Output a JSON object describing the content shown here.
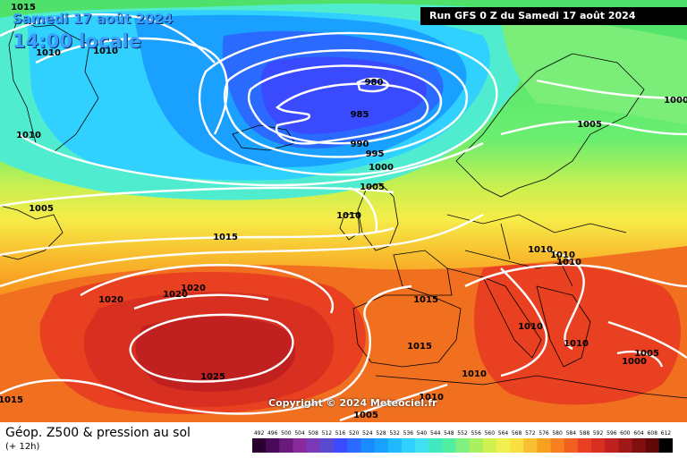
{
  "header": {
    "date_label": "Samedi 17 août 2024",
    "time_label": "14:00 locale",
    "run_label": "Run GFS 0 Z du Samedi 17 août 2024"
  },
  "footer": {
    "title": "Géop. Z500 & pression au sol",
    "subtitle": "(+ 12h)",
    "copyright": "Copyright © 2024 Meteociel.fr"
  },
  "isobar_labels": [
    "1015",
    "1010",
    "1010",
    "1010",
    "980",
    "985",
    "990",
    "995",
    "1000",
    "1005",
    "1005",
    "1010",
    "1015",
    "1010",
    "1010",
    "1010",
    "1005",
    "1000",
    "1005",
    "1000",
    "1020",
    "1020",
    "1020",
    "1025",
    "1015",
    "1010",
    "1015",
    "1015",
    "1010",
    "1010",
    "1010",
    "1005"
  ],
  "colors": {
    "isobar": "#ffffff",
    "coast": "#000000"
  },
  "scale": {
    "labels": [
      "492",
      "496",
      "500",
      "504",
      "508",
      "512",
      "516",
      "520",
      "524",
      "528",
      "532",
      "536",
      "540",
      "544",
      "548",
      "552",
      "556",
      "560",
      "564",
      "568",
      "572",
      "576",
      "580",
      "584",
      "588",
      "592",
      "596",
      "600",
      "604",
      "608",
      "612"
    ],
    "colors": [
      "#2a0030",
      "#4a0a5a",
      "#6a1a7a",
      "#8a2a9a",
      "#7a3ab8",
      "#5a4ad0",
      "#3a4aff",
      "#2a6aff",
      "#1a8aff",
      "#1aa0ff",
      "#20b8ff",
      "#30d0ff",
      "#40e0f0",
      "#40e8c0",
      "#50f0a0",
      "#80f080",
      "#a8f060",
      "#d0f050",
      "#f0f050",
      "#f8e040",
      "#f8c030",
      "#f8a020",
      "#f88020",
      "#f06020",
      "#e84020",
      "#d83020",
      "#c02020",
      "#a01818",
      "#801010",
      "#600808",
      "#000000"
    ]
  }
}
